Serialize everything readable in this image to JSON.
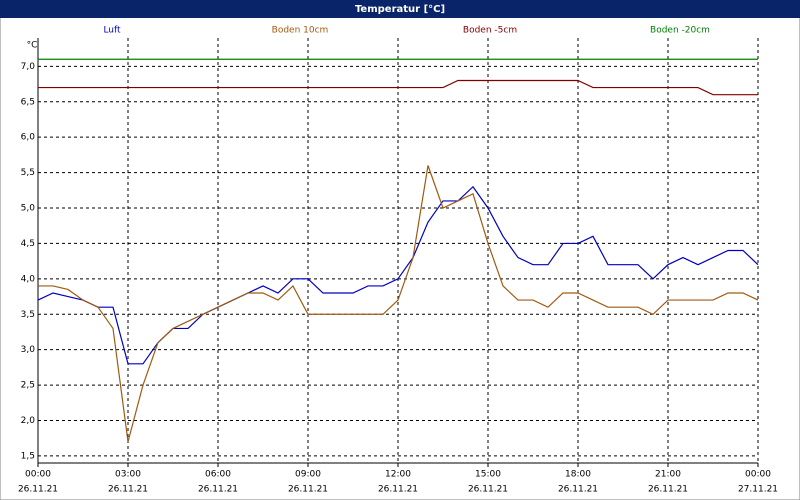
{
  "chart_data": {
    "type": "line",
    "title": "Temperatur [°C]",
    "y_label": "°C",
    "x": [
      0,
      0.5,
      1,
      1.5,
      2,
      2.5,
      3,
      3.5,
      4,
      4.5,
      5,
      5.5,
      6,
      6.5,
      7,
      7.5,
      8,
      8.5,
      9,
      9.5,
      10,
      10.5,
      11,
      11.5,
      12,
      12.5,
      13,
      13.5,
      14,
      14.5,
      15,
      15.5,
      16,
      16.5,
      17,
      17.5,
      18,
      18.5,
      19,
      19.5,
      20,
      20.5,
      21,
      21.5,
      22,
      22.5,
      23,
      23.5,
      24
    ],
    "series": [
      {
        "name": "Luft",
        "color": "#0000c0",
        "values": [
          3.7,
          3.8,
          3.75,
          3.7,
          3.6,
          3.6,
          2.8,
          2.8,
          3.1,
          3.3,
          3.3,
          3.5,
          3.6,
          3.7,
          3.8,
          3.9,
          3.8,
          4.0,
          4.0,
          3.8,
          3.8,
          3.8,
          3.9,
          3.9,
          4.0,
          4.3,
          4.8,
          5.1,
          5.1,
          5.3,
          5.0,
          4.6,
          4.3,
          4.2,
          4.2,
          4.5,
          4.5,
          4.6,
          4.2,
          4.2,
          4.2,
          4.0,
          4.2,
          4.3,
          4.2,
          4.3,
          4.4,
          4.4,
          4.2
        ]
      },
      {
        "name": "Boden 10cm",
        "color": "#a05a10",
        "values": [
          3.9,
          3.9,
          3.85,
          3.7,
          3.6,
          3.3,
          1.7,
          2.5,
          3.1,
          3.3,
          3.4,
          3.5,
          3.6,
          3.7,
          3.8,
          3.8,
          3.7,
          3.9,
          3.5,
          3.5,
          3.5,
          3.5,
          3.5,
          3.5,
          3.7,
          4.3,
          5.6,
          5.0,
          5.1,
          5.2,
          4.5,
          3.9,
          3.7,
          3.7,
          3.6,
          3.8,
          3.8,
          3.7,
          3.6,
          3.6,
          3.6,
          3.5,
          3.7,
          3.7,
          3.7,
          3.7,
          3.8,
          3.8,
          3.7
        ]
      },
      {
        "name": "Boden -5cm",
        "color": "#800000",
        "values": [
          6.7,
          6.7,
          6.7,
          6.7,
          6.7,
          6.7,
          6.7,
          6.7,
          6.7,
          6.7,
          6.7,
          6.7,
          6.7,
          6.7,
          6.7,
          6.7,
          6.7,
          6.7,
          6.7,
          6.7,
          6.7,
          6.7,
          6.7,
          6.7,
          6.7,
          6.7,
          6.7,
          6.7,
          6.8,
          6.8,
          6.8,
          6.8,
          6.8,
          6.8,
          6.8,
          6.8,
          6.8,
          6.7,
          6.7,
          6.7,
          6.7,
          6.7,
          6.7,
          6.7,
          6.7,
          6.6,
          6.6,
          6.6,
          6.6
        ]
      },
      {
        "name": "Boden -20cm",
        "color": "#008000",
        "values": [
          7.1,
          7.1,
          7.1,
          7.1,
          7.1,
          7.1,
          7.1,
          7.1,
          7.1,
          7.1,
          7.1,
          7.1,
          7.1,
          7.1,
          7.1,
          7.1,
          7.1,
          7.1,
          7.1,
          7.1,
          7.1,
          7.1,
          7.1,
          7.1,
          7.1,
          7.1,
          7.1,
          7.1,
          7.1,
          7.1,
          7.1,
          7.1,
          7.1,
          7.1,
          7.1,
          7.1,
          7.1,
          7.1,
          7.1,
          7.1,
          7.1,
          7.1,
          7.1,
          7.1,
          7.1,
          7.1,
          7.1,
          7.1,
          7.1
        ]
      }
    ],
    "xlim": [
      0,
      24
    ],
    "xticks": [
      {
        "value": 0,
        "label": "00:00"
      },
      {
        "value": 3,
        "label": "03:00"
      },
      {
        "value": 6,
        "label": "06:00"
      },
      {
        "value": 9,
        "label": "09:00"
      },
      {
        "value": 12,
        "label": "12:00"
      },
      {
        "value": 15,
        "label": "15:00"
      },
      {
        "value": 18,
        "label": "18:00"
      },
      {
        "value": 21,
        "label": "21:00"
      },
      {
        "value": 24,
        "label": "00:00"
      }
    ],
    "xtick_dates": [
      "26.11.21",
      "26.11.21",
      "26.11.21",
      "26.11.21",
      "26.11.21",
      "26.11.21",
      "26.11.21",
      "26.11.21",
      "27.11.21"
    ],
    "ylim": [
      1.4,
      7.4
    ],
    "yticks": [
      {
        "value": 1.5,
        "label": "1,5"
      },
      {
        "value": 2,
        "label": "2,0"
      },
      {
        "value": 2.5,
        "label": "2,5"
      },
      {
        "value": 3,
        "label": "3,0"
      },
      {
        "value": 3.5,
        "label": "3,5"
      },
      {
        "value": 4,
        "label": "4,0"
      },
      {
        "value": 4.5,
        "label": "4,5"
      },
      {
        "value": 5,
        "label": "5,0"
      },
      {
        "value": 5.5,
        "label": "5,5"
      },
      {
        "value": 6,
        "label": "6,0"
      },
      {
        "value": 6.5,
        "label": "6,5"
      },
      {
        "value": 7,
        "label": "7,0"
      }
    ],
    "grid": true
  }
}
